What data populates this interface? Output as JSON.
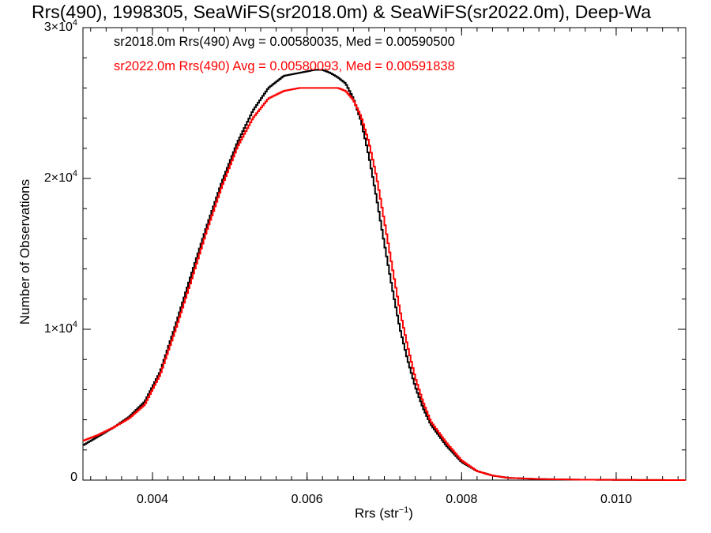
{
  "chart_data": {
    "type": "line",
    "style": "step-histogram",
    "title": "Rrs(490), 1998305, SeaWiFS(sr2018.0m) & SeaWiFS(sr2022.0m), Deep-Wa",
    "xlabel": "Rrs (str⁻¹)",
    "xlabel_base": "Rrs (str",
    "xlabel_exp": "−1",
    "xlabel_close": ")",
    "ylabel": "Number of Observations",
    "xlim": [
      0.0031,
      0.0109
    ],
    "ylim": [
      0,
      30000
    ],
    "grid": false,
    "legend_position": "top-left",
    "x_ticks": [
      {
        "value": 0.004,
        "label": "0.004"
      },
      {
        "value": 0.006,
        "label": "0.006"
      },
      {
        "value": 0.008,
        "label": "0.008"
      },
      {
        "value": 0.01,
        "label": "0.010"
      }
    ],
    "y_ticks": [
      {
        "value": 0,
        "label": "0"
      },
      {
        "value": 10000,
        "label": "1×10",
        "exp": "4"
      },
      {
        "value": 20000,
        "label": "2×10",
        "exp": "4"
      },
      {
        "value": 30000,
        "label": "3×10",
        "exp": "4"
      }
    ],
    "series": [
      {
        "name": "sr2018.0m",
        "legend_text": "sr2018.0m Rrs(490) Avg = 0.00580035, Med = 0.00590500",
        "color": "#000000",
        "x": [
          0.0031,
          0.0033,
          0.0035,
          0.0037,
          0.0039,
          0.0041,
          0.0043,
          0.0045,
          0.0047,
          0.0049,
          0.0051,
          0.0053,
          0.0055,
          0.0057,
          0.0059,
          0.006,
          0.0061,
          0.0062,
          0.0063,
          0.0064,
          0.0065,
          0.0066,
          0.0067,
          0.0068,
          0.0069,
          0.007,
          0.0071,
          0.0072,
          0.0073,
          0.0074,
          0.0075,
          0.0076,
          0.0078,
          0.008,
          0.0082,
          0.0084,
          0.0086,
          0.009,
          0.0095,
          0.01,
          0.0105,
          0.0109
        ],
        "y": [
          2300,
          2900,
          3500,
          4200,
          5200,
          7200,
          10300,
          13600,
          16800,
          19800,
          22400,
          24500,
          26000,
          26800,
          27000,
          27100,
          27200,
          27200,
          27000,
          26700,
          26300,
          25300,
          23800,
          21500,
          18700,
          15700,
          12800,
          10100,
          8000,
          6200,
          4800,
          3700,
          2300,
          1200,
          600,
          300,
          150,
          70,
          30,
          15,
          5,
          0
        ]
      },
      {
        "name": "sr2022.0m",
        "legend_text": "sr2022.0m Rrs(490) Avg = 0.00580093, Med = 0.00591838",
        "color": "#ff0000",
        "x": [
          0.0031,
          0.0033,
          0.0035,
          0.0037,
          0.0039,
          0.0041,
          0.0043,
          0.0045,
          0.0047,
          0.0049,
          0.0051,
          0.0053,
          0.0055,
          0.0057,
          0.0059,
          0.006,
          0.0061,
          0.0062,
          0.0063,
          0.0064,
          0.0065,
          0.0066,
          0.0067,
          0.0068,
          0.0069,
          0.007,
          0.0071,
          0.0072,
          0.0073,
          0.0074,
          0.0075,
          0.0076,
          0.0078,
          0.008,
          0.0082,
          0.0084,
          0.0086,
          0.009,
          0.0095,
          0.01,
          0.0105,
          0.0109
        ],
        "y": [
          2600,
          3000,
          3500,
          4100,
          5000,
          7000,
          10000,
          13200,
          16500,
          19500,
          22100,
          24000,
          25300,
          25800,
          26000,
          26000,
          26000,
          26000,
          26000,
          26000,
          25800,
          25200,
          24100,
          22400,
          20100,
          17200,
          14200,
          11300,
          8900,
          6800,
          5200,
          3900,
          2500,
          1300,
          600,
          300,
          150,
          70,
          30,
          15,
          5,
          0
        ]
      }
    ]
  }
}
